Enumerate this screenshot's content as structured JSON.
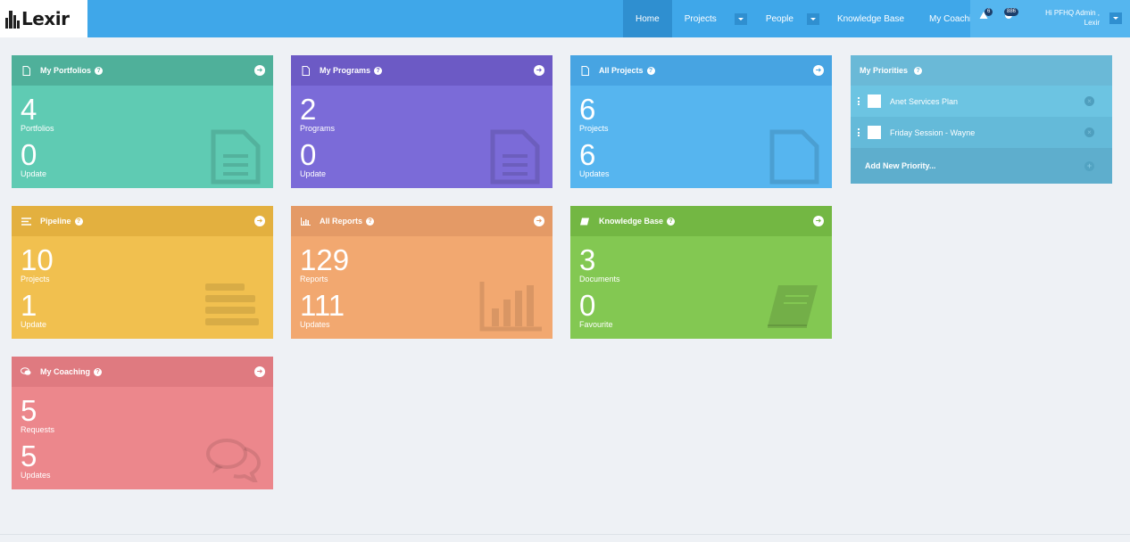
{
  "brand": {
    "name": "Lexir"
  },
  "nav": {
    "items": [
      {
        "label": "Home",
        "active": true
      },
      {
        "label": "Projects",
        "dropdown": true
      },
      {
        "label": "People",
        "dropdown": true
      },
      {
        "label": "Knowledge Base"
      },
      {
        "label": "My Coaching"
      }
    ],
    "alerts_count": "6",
    "messages_count": "886",
    "user_greeting_line1": "Hi PFHQ Admin ,",
    "user_greeting_line2": "Lexir"
  },
  "tiles": [
    {
      "title": "My Portfolios",
      "icon": "document-icon",
      "primary_value": "4",
      "primary_label": "Portfolios",
      "secondary_value": "0",
      "secondary_label": "Update",
      "color": "#5fcbb3"
    },
    {
      "title": "My Programs",
      "icon": "document-icon",
      "primary_value": "2",
      "primary_label": "Programs",
      "secondary_value": "0",
      "secondary_label": "Update",
      "color": "#7b6bd8"
    },
    {
      "title": "All Projects",
      "icon": "file-icon",
      "primary_value": "6",
      "primary_label": "Projects",
      "secondary_value": "6",
      "secondary_label": "Updates",
      "color": "#56b5ef"
    },
    {
      "title": "Pipeline",
      "icon": "lines-icon",
      "primary_value": "10",
      "primary_label": "Projects",
      "secondary_value": "1",
      "secondary_label": "Update",
      "color": "#f1c04f"
    },
    {
      "title": "All Reports",
      "icon": "bar-chart-icon",
      "primary_value": "129",
      "primary_label": "Reports",
      "secondary_value": "111",
      "secondary_label": "Updates",
      "color": "#f2a870"
    },
    {
      "title": "Knowledge Base",
      "icon": "book-icon",
      "primary_value": "3",
      "primary_label": "Documents",
      "secondary_value": "0",
      "secondary_label": "Favourite",
      "color": "#83c852"
    },
    {
      "title": "My Coaching",
      "icon": "comments-icon",
      "primary_value": "5",
      "primary_label": "Requests",
      "secondary_value": "5",
      "secondary_label": "Updates",
      "color": "#ec878c"
    }
  ],
  "priorities": {
    "title": "My Priorities",
    "items": [
      {
        "label": "Anet Services Plan"
      },
      {
        "label": "Friday Session - Wayne"
      }
    ],
    "add_label": "Add New Priority..."
  }
}
